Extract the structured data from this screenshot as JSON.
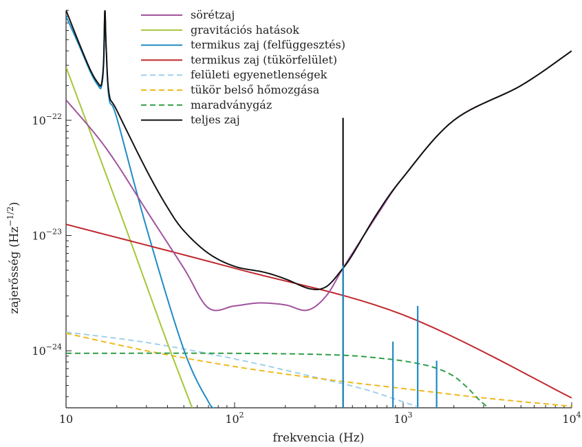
{
  "chart_data": {
    "type": "line",
    "xlabel": "frekvencia (Hz)",
    "ylabel": "zajerősség (Hz",
    "ylabel_exp": "−1/2",
    "ylabel_close": ")",
    "x_scale": "log",
    "y_scale": "log",
    "xlim": [
      10,
      10000
    ],
    "ylim": [
      3.2e-25,
      9e-22
    ],
    "grid": false,
    "legend_position": "top-center",
    "x_ticks": [
      {
        "value": 10,
        "base": "10",
        "exp": ""
      },
      {
        "value": 100,
        "base": "10",
        "exp": "2"
      },
      {
        "value": 1000,
        "base": "10",
        "exp": "3"
      },
      {
        "value": 10000,
        "base": "10",
        "exp": "4"
      }
    ],
    "y_ticks": [
      {
        "value": 1e-24,
        "base": "10",
        "exp": "−24"
      },
      {
        "value": 1e-23,
        "base": "10",
        "exp": "−23"
      },
      {
        "value": 1e-22,
        "base": "10",
        "exp": "−22"
      }
    ],
    "series": [
      {
        "name": "sörétzaj",
        "color": "#a0529b",
        "dash": false,
        "x": [
          10,
          15,
          20,
          30,
          50,
          70,
          100,
          140,
          200,
          270,
          350,
          450,
          700,
          1000,
          2000,
          5000,
          10000
        ],
        "y": [
          1.5e-22,
          7.5e-23,
          4.2e-23,
          1.65e-23,
          5.2e-24,
          2.35e-24,
          2.45e-24,
          2.6e-24,
          2.5e-24,
          2.25e-24,
          3e-24,
          5.5e-24,
          1.5e-23,
          3.2e-23,
          1e-22,
          2e-22,
          4e-22
        ]
      },
      {
        "name": "gravitációs hatások",
        "color": "#a4c639",
        "dash": false,
        "x": [
          10,
          20,
          30,
          40,
          56
        ],
        "y": [
          2.9e-22,
          1.9e-23,
          3.7e-24,
          1.16e-24,
          3.2e-25
        ]
      },
      {
        "name": "termikus zaj (felfüggesztés)",
        "color": "#1e8bc3",
        "dash": false,
        "x": [
          10,
          12,
          14,
          15.5,
          16.2,
          16.7,
          17.0,
          17.3,
          18,
          20,
          30,
          50,
          70,
          77
        ],
        "y": [
          8e-22,
          4.4e-22,
          2.6e-22,
          2e-22,
          1.95e-22,
          3e-22,
          9e-22,
          4.2e-22,
          1.55e-22,
          1.05e-22,
          1.17e-23,
          1.02e-24,
          3.6e-25,
          3.2e-25
        ]
      },
      {
        "name": "termikus zaj (tükörfelület)",
        "color": "#c0272d",
        "dash": false,
        "x": [
          10,
          100,
          1000,
          10000
        ],
        "y": [
          1.25e-23,
          5.2e-24,
          2.05e-24,
          3.9e-25
        ]
      },
      {
        "name": "felületi egyenetlenségek",
        "color": "#9fd0ea",
        "dash": true,
        "x": [
          10,
          30,
          100,
          300,
          600,
          1000,
          1200
        ],
        "y": [
          1.45e-24,
          1.18e-24,
          8.5e-25,
          5.9e-25,
          4.6e-25,
          3.6e-25,
          3.3e-25
        ]
      },
      {
        "name": "tükör belső hőmozgása",
        "color": "#f0b81a",
        "dash": true,
        "x": [
          10,
          30,
          100,
          300,
          1000,
          3000,
          10000
        ],
        "y": [
          1.42e-24,
          1e-24,
          7.3e-25,
          5.8e-25,
          4.7e-25,
          3.9e-25,
          3.3e-25
        ]
      },
      {
        "name": "maradványgáz",
        "color": "#2e9e44",
        "dash": true,
        "x": [
          10,
          100,
          400,
          800,
          1200,
          1600,
          2000,
          2400,
          2800,
          3200
        ],
        "y": [
          9.5e-25,
          9.5e-25,
          9.2e-25,
          8.5e-25,
          7.8e-25,
          7e-25,
          6e-25,
          4.8e-25,
          3.8e-25,
          3.2e-25
        ]
      },
      {
        "name": "teljes zaj",
        "color": "#111111",
        "dash": false,
        "x": [
          10,
          12,
          14,
          15.5,
          16.2,
          16.7,
          17.0,
          17.3,
          18,
          20,
          30,
          40,
          50,
          70,
          100,
          150,
          200,
          280,
          350,
          430,
          500,
          700,
          1000,
          2000,
          5000,
          10000
        ],
        "y": [
          9e-22,
          4.6e-22,
          2.7e-22,
          2.1e-22,
          2.05e-22,
          3.2e-22,
          9e-22,
          4.3e-22,
          1.7e-22,
          1.22e-22,
          3.7e-23,
          1.75e-23,
          1.1e-23,
          7e-24,
          5.4e-24,
          4.8e-24,
          4.2e-24,
          3.45e-24,
          3.6e-24,
          5e-24,
          6.8e-24,
          1.55e-23,
          3.2e-23,
          1e-22,
          2e-22,
          4e-22
        ]
      }
    ],
    "peaks": [
      {
        "series": "teljes zaj",
        "x": 440,
        "y_top": 1.05e-22
      },
      {
        "series": "termikus zaj (felfüggesztés)",
        "x": 440,
        "y_top": 5.5e-24
      },
      {
        "series": "termikus zaj (felfüggesztés)",
        "x": 870,
        "y_top": 1.2e-24
      },
      {
        "series": "termikus zaj (felfüggesztés)",
        "x": 1220,
        "y_top": 2.45e-24
      },
      {
        "series": "termikus zaj (felfüggesztés)",
        "x": 1580,
        "y_top": 8.2e-25
      }
    ]
  }
}
